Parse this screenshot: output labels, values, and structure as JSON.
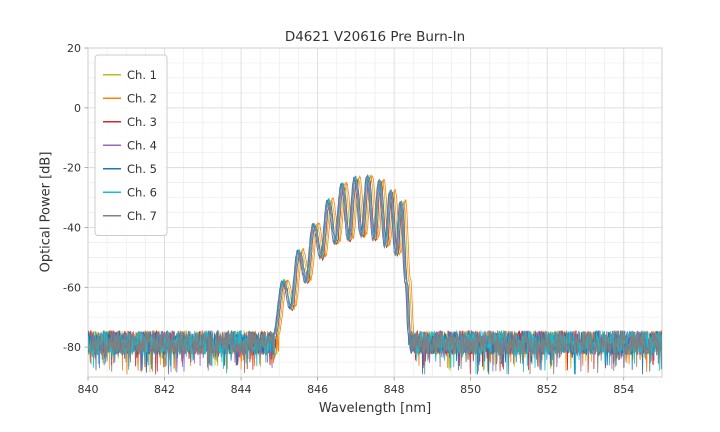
{
  "chart_data": {
    "type": "line",
    "title": "D4621 V20616 Pre Burn-In",
    "xlabel": "Wavelength [nm]",
    "ylabel": "Optical Power [dB]",
    "xlim": [
      840,
      855
    ],
    "ylim": [
      -90,
      20
    ],
    "x_ticks": [
      840,
      842,
      844,
      846,
      848,
      850,
      852,
      854
    ],
    "y_ticks": [
      20,
      0,
      -20,
      -40,
      -60,
      -80
    ],
    "grid": true,
    "legend_position": "upper left",
    "noise_floor_db": -79,
    "noise_range_db": [
      -89,
      -74
    ],
    "envelope_points": [
      [
        844.88,
        -76
      ],
      [
        845.12,
        -58
      ],
      [
        845.32,
        -67
      ],
      [
        845.52,
        -48
      ],
      [
        845.72,
        -58
      ],
      [
        845.92,
        -39
      ],
      [
        846.11,
        -50
      ],
      [
        846.3,
        -31
      ],
      [
        846.48,
        -45
      ],
      [
        846.66,
        -25.5
      ],
      [
        846.83,
        -44
      ],
      [
        847.0,
        -23.5
      ],
      [
        847.17,
        -43
      ],
      [
        847.33,
        -23
      ],
      [
        847.49,
        -44
      ],
      [
        847.64,
        -24.5
      ],
      [
        847.79,
        -46
      ],
      [
        847.93,
        -28
      ],
      [
        848.07,
        -49
      ],
      [
        848.2,
        -31.5
      ],
      [
        848.33,
        -58
      ],
      [
        848.42,
        -76
      ]
    ],
    "series": [
      {
        "name": "Ch. 1",
        "color": "#bcbd22",
        "dx": 0.06,
        "dy": 0.0
      },
      {
        "name": "Ch. 2",
        "color": "#ff7f0e",
        "dx": 0.1,
        "dy": 0.5
      },
      {
        "name": "Ch. 3",
        "color": "#d62728",
        "dx": 0.02,
        "dy": -0.5
      },
      {
        "name": "Ch. 4",
        "color": "#9467bd",
        "dx": -0.02,
        "dy": 0.3
      },
      {
        "name": "Ch. 5",
        "color": "#1f77b4",
        "dx": -0.05,
        "dy": 0.0
      },
      {
        "name": "Ch. 6",
        "color": "#17becf",
        "dx": 0.0,
        "dy": 0.2
      },
      {
        "name": "Ch. 7",
        "color": "#7f7f7f",
        "dx": -0.04,
        "dy": -0.3
      }
    ]
  }
}
